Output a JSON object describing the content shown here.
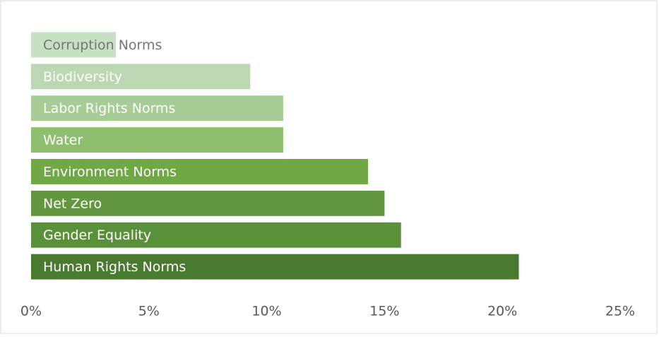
{
  "chart_data": {
    "type": "bar",
    "orientation": "horizontal",
    "categories": [
      "Corruption Norms",
      "Biodiversity",
      "Labor Rights Norms",
      "Water",
      "Environment Norms",
      "Net Zero",
      "Gender Equality",
      "Human Rights Norms"
    ],
    "values": [
      3.6,
      9.3,
      10.7,
      10.7,
      14.3,
      15.0,
      15.7,
      20.7
    ],
    "colors": [
      "#c8e0c3",
      "#bcd8b2",
      "#a8cc95",
      "#8dbf6e",
      "#6fa845",
      "#62973f",
      "#5b903a",
      "#4a7a30"
    ],
    "label_colors": [
      "#767676",
      "#ffffff",
      "#ffffff",
      "#ffffff",
      "#ffffff",
      "#ffffff",
      "#ffffff",
      "#ffffff"
    ],
    "xlim": [
      0,
      25
    ],
    "xticks": [
      {
        "value": 0,
        "label": "0%"
      },
      {
        "value": 5,
        "label": "5%"
      },
      {
        "value": 10,
        "label": "10%"
      },
      {
        "value": 15,
        "label": "15%"
      },
      {
        "value": 20,
        "label": "20%"
      },
      {
        "value": 25,
        "label": "25%"
      }
    ],
    "grid": false
  }
}
